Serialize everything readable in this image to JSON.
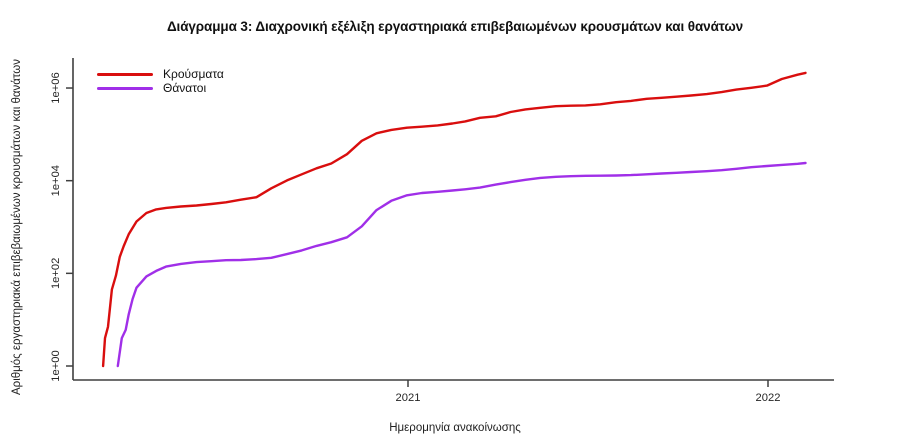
{
  "chart_data": {
    "type": "line",
    "title": "Διάγραμμα 3: Διαχρονική εξέλιξη εργαστηριακά επιβεβαιωμένων κρουσμάτων και θανάτων",
    "xlabel": "Ημερομηνία ανακοίνωσης",
    "ylabel": "Αριθμός εργαστηριακά επιβεβαιωμένων κρουσμάτων και θανάτων",
    "y_scale": "log10",
    "ylim": [
      1,
      3000000
    ],
    "x_ticks": [
      {
        "label": "2021",
        "year": 2021
      },
      {
        "label": "2022",
        "year": 2022
      }
    ],
    "y_ticks": [
      {
        "label": "1e+00",
        "value": 1
      },
      {
        "label": "1e+02",
        "value": 100
      },
      {
        "label": "1e+04",
        "value": 10000
      },
      {
        "label": "1e+06",
        "value": 1000000
      }
    ],
    "legend_position": "top-left",
    "grid": false,
    "axis_color": "#3f3f3f",
    "tick_label_color": "#262626",
    "series": [
      {
        "name": "Κρούσματα",
        "color": "#D90E0E",
        "points": [
          [
            "2020-02-26",
            1
          ],
          [
            "2020-02-28",
            4
          ],
          [
            "2020-03-02",
            7
          ],
          [
            "2020-03-06",
            45
          ],
          [
            "2020-03-10",
            89
          ],
          [
            "2020-03-14",
            228
          ],
          [
            "2020-03-18",
            387
          ],
          [
            "2020-03-23",
            695
          ],
          [
            "2020-03-31",
            1314
          ],
          [
            "2020-04-10",
            2011
          ],
          [
            "2020-04-20",
            2401
          ],
          [
            "2020-04-30",
            2591
          ],
          [
            "2020-05-15",
            2770
          ],
          [
            "2020-05-31",
            2917
          ],
          [
            "2020-06-15",
            3134
          ],
          [
            "2020-06-30",
            3409
          ],
          [
            "2020-07-15",
            3883
          ],
          [
            "2020-07-31",
            4401
          ],
          [
            "2020-08-15",
            6858
          ],
          [
            "2020-08-31",
            10134
          ],
          [
            "2020-09-15",
            13730
          ],
          [
            "2020-09-30",
            18475
          ],
          [
            "2020-10-15",
            23495
          ],
          [
            "2020-10-31",
            37196
          ],
          [
            "2020-11-15",
            72510
          ],
          [
            "2020-11-30",
            105271
          ],
          [
            "2020-12-15",
            124534
          ],
          [
            "2020-12-31",
            138850
          ],
          [
            "2021-01-15",
            146020
          ],
          [
            "2021-01-31",
            155678
          ],
          [
            "2021-02-15",
            171642
          ],
          [
            "2021-02-28",
            190235
          ],
          [
            "2021-03-15",
            227247
          ],
          [
            "2021-03-31",
            245405
          ],
          [
            "2021-04-15",
            304184
          ],
          [
            "2021-04-30",
            344917
          ],
          [
            "2021-05-15",
            373881
          ],
          [
            "2021-05-31",
            405542
          ],
          [
            "2021-06-15",
            414833
          ],
          [
            "2021-06-30",
            421266
          ],
          [
            "2021-07-15",
            444783
          ],
          [
            "2021-07-31",
            493769
          ],
          [
            "2021-08-15",
            528301
          ],
          [
            "2021-08-31",
            584554
          ],
          [
            "2021-09-15",
            615232
          ],
          [
            "2021-09-30",
            650663
          ],
          [
            "2021-10-15",
            687975
          ],
          [
            "2021-10-31",
            739904
          ],
          [
            "2021-11-15",
            817667
          ],
          [
            "2021-11-30",
            924006
          ],
          [
            "2021-12-15",
            1011184
          ],
          [
            "2021-12-31",
            1126059
          ],
          [
            "2022-01-15",
            1563490
          ],
          [
            "2022-01-31",
            1934334
          ],
          [
            "2022-02-08",
            2120717
          ]
        ]
      },
      {
        "name": "Θάνατοι",
        "color": "#A02FE8",
        "points": [
          [
            "2020-03-12",
            1
          ],
          [
            "2020-03-16",
            4
          ],
          [
            "2020-03-20",
            6
          ],
          [
            "2020-03-23",
            13
          ],
          [
            "2020-03-27",
            28
          ],
          [
            "2020-03-31",
            49
          ],
          [
            "2020-04-10",
            86
          ],
          [
            "2020-04-20",
            113
          ],
          [
            "2020-04-30",
            140
          ],
          [
            "2020-05-15",
            160
          ],
          [
            "2020-05-31",
            175
          ],
          [
            "2020-06-15",
            183
          ],
          [
            "2020-06-30",
            192
          ],
          [
            "2020-07-15",
            194
          ],
          [
            "2020-07-31",
            203
          ],
          [
            "2020-08-15",
            216
          ],
          [
            "2020-08-31",
            260
          ],
          [
            "2020-09-15",
            313
          ],
          [
            "2020-09-30",
            391
          ],
          [
            "2020-10-15",
            469
          ],
          [
            "2020-10-31",
            601
          ],
          [
            "2020-11-15",
            1035
          ],
          [
            "2020-11-30",
            2321
          ],
          [
            "2020-12-15",
            3687
          ],
          [
            "2020-12-31",
            4838
          ],
          [
            "2021-01-15",
            5421
          ],
          [
            "2021-01-31",
            5764
          ],
          [
            "2021-02-15",
            6152
          ],
          [
            "2021-02-28",
            6504
          ],
          [
            "2021-03-15",
            7091
          ],
          [
            "2021-03-31",
            8232
          ],
          [
            "2021-04-15",
            9330
          ],
          [
            "2021-04-30",
            10453
          ],
          [
            "2021-05-15",
            11471
          ],
          [
            "2021-05-31",
            12122
          ],
          [
            "2021-06-15",
            12478
          ],
          [
            "2021-06-30",
            12737
          ],
          [
            "2021-07-15",
            12836
          ],
          [
            "2021-07-31",
            12965
          ],
          [
            "2021-08-15",
            13193
          ],
          [
            "2021-08-31",
            13702
          ],
          [
            "2021-09-15",
            14311
          ],
          [
            "2021-09-30",
            14828
          ],
          [
            "2021-10-15",
            15375
          ],
          [
            "2021-10-31",
            15990
          ],
          [
            "2021-11-15",
            16838
          ],
          [
            "2021-11-30",
            18067
          ],
          [
            "2021-12-15",
            19544
          ],
          [
            "2021-12-31",
            20790
          ],
          [
            "2022-01-15",
            21946
          ],
          [
            "2022-01-31",
            23083
          ],
          [
            "2022-02-08",
            24100
          ]
        ]
      }
    ]
  }
}
